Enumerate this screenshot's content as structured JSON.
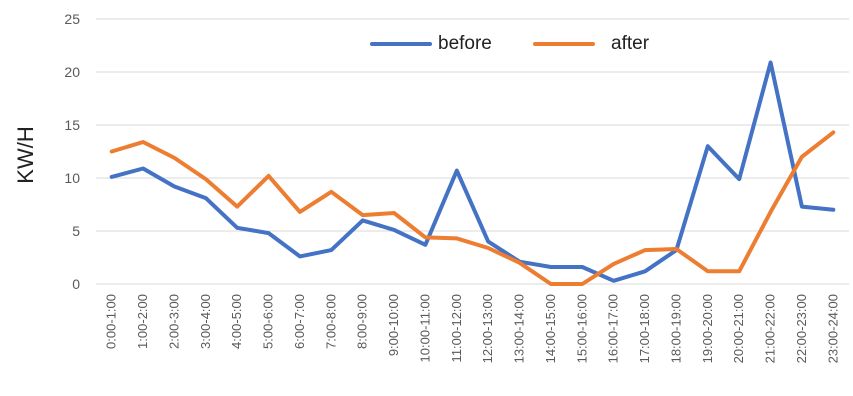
{
  "chart_data": {
    "type": "line",
    "title": "",
    "xlabel": "",
    "ylabel": "KW/H",
    "ylim": [
      0,
      25
    ],
    "yticks": [
      "0",
      "5",
      "10",
      "15",
      "20",
      "25"
    ],
    "grid": true,
    "legend_position": "top",
    "categories": [
      "0:00-1:00",
      "1:00-2:00",
      "2:00-3:00",
      "3:00-4:00",
      "4:00-5:00",
      "5:00-6:00",
      "6:00-7:00",
      "7:00-8:00",
      "8:00-9:00",
      "9:00-10:00",
      "10:00-11:00",
      "11:00-12:00",
      "12:00-13:00",
      "13:00-14:00",
      "14:00-15:00",
      "15:00-16:00",
      "16:00-17:00",
      "17:00-18:00",
      "18:00-19:00",
      "19:00-20:00",
      "20:00-21:00",
      "21:00-22:00",
      "22:00-23:00",
      "23:00-24:00"
    ],
    "series": [
      {
        "name": "before",
        "color": "#4472c4",
        "values": [
          10.1,
          10.9,
          9.2,
          8.1,
          5.3,
          4.8,
          2.6,
          3.2,
          6.0,
          5.1,
          3.7,
          10.7,
          4.0,
          2.1,
          1.6,
          1.6,
          0.3,
          1.2,
          3.2,
          13.0,
          9.9,
          20.9,
          7.3,
          7.0
        ]
      },
      {
        "name": "after",
        "color": "#ed7d31",
        "values": [
          12.5,
          13.4,
          11.9,
          9.9,
          7.3,
          10.2,
          6.8,
          8.7,
          6.5,
          6.7,
          4.4,
          4.3,
          3.4,
          2.0,
          0.0,
          0.0,
          1.9,
          3.2,
          3.3,
          1.2,
          1.2,
          6.8,
          12.0,
          14.3
        ]
      }
    ]
  }
}
